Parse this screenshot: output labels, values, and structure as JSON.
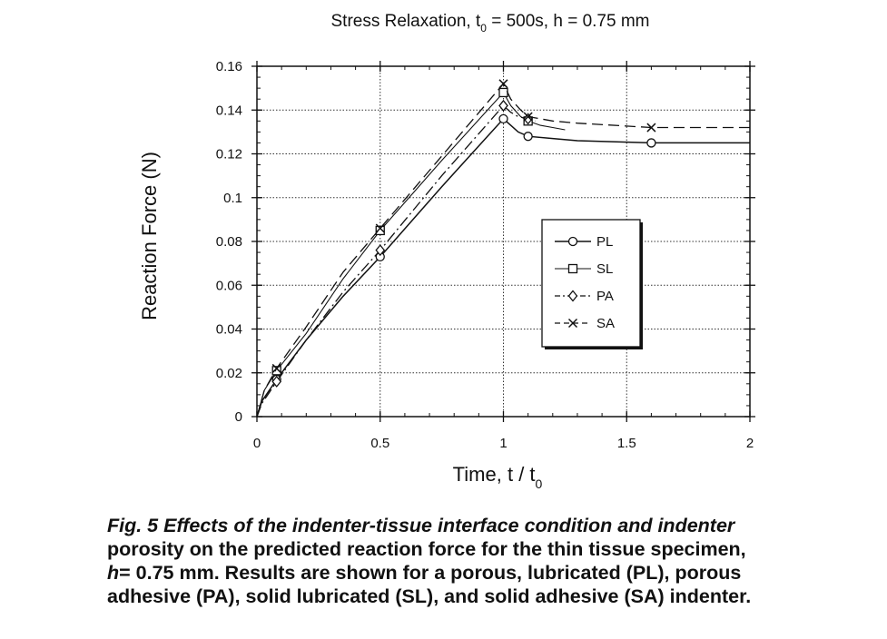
{
  "chart_data": {
    "type": "line",
    "title": {
      "prefix": "Stress  Relaxation, t",
      "sub": "0",
      "suffix": " = 500s,  h = 0.75  mm"
    },
    "xlabel": {
      "prefix": "Time,  t / t",
      "sub": "0"
    },
    "ylabel": "Reaction Force (N)",
    "xlim": [
      0,
      2
    ],
    "ylim": [
      0,
      0.16
    ],
    "xticks": [
      "0",
      "0.5",
      "1",
      "1.5",
      "2"
    ],
    "yticks": [
      "0",
      "0.02",
      "0.04",
      "0.06",
      "0.08",
      "0.1",
      "0.12",
      "0.14",
      "0.16"
    ],
    "grid": true,
    "legend_position": "right",
    "series": [
      {
        "name": "PL",
        "dash": "solid",
        "marker": "circle",
        "x": [
          0,
          0.02,
          0.05,
          0.08,
          0.2,
          0.35,
          0.5,
          0.75,
          1.0,
          1.03,
          1.06,
          1.1,
          1.2,
          1.3,
          1.6,
          2.0
        ],
        "y": [
          0,
          0.007,
          0.012,
          0.017,
          0.035,
          0.055,
          0.073,
          0.105,
          0.136,
          0.133,
          0.13,
          0.128,
          0.127,
          0.126,
          0.125,
          0.125
        ],
        "marker_x": [
          0.08,
          0.5,
          1.0,
          1.1,
          1.6
        ]
      },
      {
        "name": "SL",
        "dash": "thin-solid",
        "marker": "square",
        "x": [
          0,
          0.03,
          0.08,
          0.2,
          0.35,
          0.5,
          0.75,
          1.0,
          1.03,
          1.07,
          1.1,
          1.15,
          1.2,
          1.25
        ],
        "y": [
          0,
          0.012,
          0.021,
          0.038,
          0.063,
          0.085,
          0.117,
          0.148,
          0.142,
          0.137,
          0.135,
          0.133,
          0.132,
          0.131
        ],
        "marker_x": [
          0.08,
          0.5,
          1.0,
          1.1
        ]
      },
      {
        "name": "PA",
        "dash": "dash-dot",
        "marker": "diamond",
        "x": [
          0,
          0.02,
          0.05,
          0.08,
          0.2,
          0.35,
          0.5,
          0.75,
          1.0,
          1.03,
          1.06,
          1.1,
          1.13
        ],
        "y": [
          0,
          0.006,
          0.011,
          0.016,
          0.035,
          0.057,
          0.076,
          0.11,
          0.142,
          0.139,
          0.137,
          0.136,
          0.135
        ],
        "marker_x": [
          0.08,
          0.5,
          1.0,
          1.1
        ]
      },
      {
        "name": "SA",
        "dash": "dashed",
        "marker": "x",
        "x": [
          0,
          0.03,
          0.08,
          0.2,
          0.35,
          0.5,
          0.75,
          1.0,
          1.03,
          1.07,
          1.1,
          1.2,
          1.3,
          1.6,
          2.0
        ],
        "y": [
          0,
          0.012,
          0.022,
          0.041,
          0.066,
          0.086,
          0.119,
          0.152,
          0.145,
          0.14,
          0.137,
          0.135,
          0.134,
          0.132,
          0.132
        ],
        "marker_x": [
          0.08,
          0.5,
          1.0,
          1.1,
          1.6
        ]
      }
    ]
  },
  "caption": {
    "lead": "Fig. 5   Effects of the indenter-tissue interface condition and indenter",
    "line2": "porosity on the predicted reaction force for the thin tissue specimen,",
    "h_symbol": "h",
    "line3_rest": "= 0.75 mm. Results are shown for a porous, lubricated (PL), porous",
    "line4": "adhesive (PA), solid lubricated (SL), and solid adhesive (SA) indenter."
  }
}
